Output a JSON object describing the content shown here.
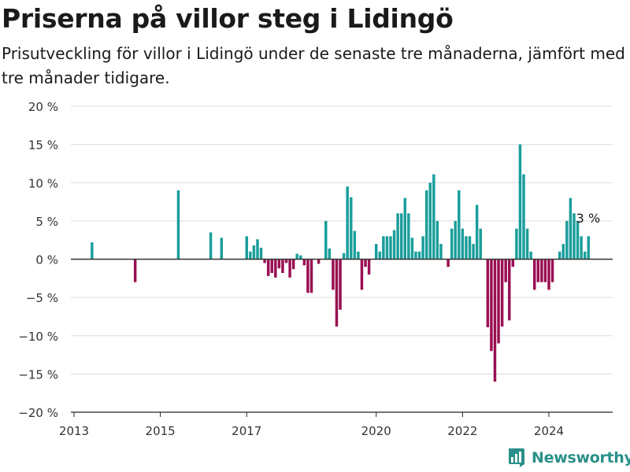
{
  "header": {
    "title": "Priserna på villor steg i Lidingö",
    "subtitle": "Prisutveckling för villor i Lidingö under de senaste tre månaderna, jämfört med tre månader tidigare."
  },
  "brand": {
    "name": "Newsworthy",
    "icon": "newsworthy-logo-icon"
  },
  "colors": {
    "positive": "#1a9e9b",
    "negative": "#9a0e52",
    "grid": "#dcdcdc",
    "zero_line": "#333333",
    "brand": "#2a8f89"
  },
  "chart_data": {
    "type": "bar",
    "title": "Priserna på villor steg i Lidingö",
    "xlabel": "",
    "ylabel": "",
    "ylim": [
      -20,
      20
    ],
    "y_ticks": [
      -20,
      -15,
      -10,
      -5,
      0,
      5,
      10,
      15,
      20
    ],
    "y_tick_labels": [
      "−20 %",
      "−15 %",
      "−10 %",
      "−5 %",
      "0 %",
      "5 %",
      "10 %",
      "15 %",
      "20 %"
    ],
    "x_tick_labels": [
      "2013",
      "2015",
      "2017",
      "2020",
      "2022",
      "2024"
    ],
    "x_tick_dates": [
      "2013-01",
      "2015-01",
      "2017-01",
      "2020-01",
      "2022-01",
      "2024-01"
    ],
    "grid": true,
    "annotation": {
      "text": "3 %",
      "date": "2024-11"
    },
    "series": [
      {
        "values": [
          [
            "2013-06",
            2.2
          ],
          [
            "2014-06",
            -3.0
          ],
          [
            "2015-06",
            9.0
          ],
          [
            "2016-03",
            3.5
          ],
          [
            "2016-06",
            2.8
          ],
          [
            "2017-01",
            3.0
          ],
          [
            "2017-02",
            1.0
          ],
          [
            "2017-03",
            1.8
          ],
          [
            "2017-04",
            2.6
          ],
          [
            "2017-05",
            1.5
          ],
          [
            "2017-06",
            -0.5
          ],
          [
            "2017-07",
            -2.2
          ],
          [
            "2017-08",
            -1.8
          ],
          [
            "2017-09",
            -2.4
          ],
          [
            "2017-10",
            -1.2
          ],
          [
            "2017-11",
            -1.8
          ],
          [
            "2017-12",
            -0.5
          ],
          [
            "2018-01",
            -2.4
          ],
          [
            "2018-02",
            -1.3
          ],
          [
            "2018-03",
            0.7
          ],
          [
            "2018-04",
            0.5
          ],
          [
            "2018-05",
            -0.8
          ],
          [
            "2018-06",
            -4.4
          ],
          [
            "2018-07",
            -4.4
          ],
          [
            "2018-09",
            -0.6
          ],
          [
            "2018-11",
            5.0
          ],
          [
            "2018-12",
            1.4
          ],
          [
            "2019-01",
            -4.0
          ],
          [
            "2019-02",
            -8.8
          ],
          [
            "2019-03",
            -6.6
          ],
          [
            "2019-04",
            0.8
          ],
          [
            "2019-05",
            9.5
          ],
          [
            "2019-06",
            8.1
          ],
          [
            "2019-07",
            3.7
          ],
          [
            "2019-08",
            1.0
          ],
          [
            "2019-09",
            -4.0
          ],
          [
            "2019-10",
            -1.0
          ],
          [
            "2019-11",
            -2.0
          ],
          [
            "2020-01",
            2.0
          ],
          [
            "2020-02",
            1.0
          ],
          [
            "2020-03",
            3.0
          ],
          [
            "2020-04",
            3.0
          ],
          [
            "2020-05",
            3.0
          ],
          [
            "2020-06",
            3.8
          ],
          [
            "2020-07",
            6.0
          ],
          [
            "2020-08",
            6.0
          ],
          [
            "2020-09",
            8.0
          ],
          [
            "2020-10",
            6.0
          ],
          [
            "2020-11",
            2.8
          ],
          [
            "2020-12",
            1.0
          ],
          [
            "2021-01",
            1.0
          ],
          [
            "2021-02",
            3.0
          ],
          [
            "2021-03",
            9.0
          ],
          [
            "2021-04",
            10.0
          ],
          [
            "2021-05",
            11.1
          ],
          [
            "2021-06",
            5.0
          ],
          [
            "2021-07",
            2.0
          ],
          [
            "2021-09",
            -1.0
          ],
          [
            "2021-10",
            4.0
          ],
          [
            "2021-11",
            5.0
          ],
          [
            "2021-12",
            9.0
          ],
          [
            "2022-01",
            4.0
          ],
          [
            "2022-02",
            3.0
          ],
          [
            "2022-03",
            3.0
          ],
          [
            "2022-04",
            2.0
          ],
          [
            "2022-05",
            7.1
          ],
          [
            "2022-06",
            4.0
          ],
          [
            "2022-08",
            -8.9
          ],
          [
            "2022-09",
            -12.0
          ],
          [
            "2022-10",
            -16.0
          ],
          [
            "2022-11",
            -11.0
          ],
          [
            "2022-12",
            -8.8
          ],
          [
            "2023-01",
            -3.0
          ],
          [
            "2023-02",
            -8.0
          ],
          [
            "2023-03",
            -1.0
          ],
          [
            "2023-04",
            4.0
          ],
          [
            "2023-05",
            15.0
          ],
          [
            "2023-06",
            11.1
          ],
          [
            "2023-07",
            4.0
          ],
          [
            "2023-08",
            1.0
          ],
          [
            "2023-09",
            -4.0
          ],
          [
            "2023-10",
            -3.0
          ],
          [
            "2023-11",
            -3.0
          ],
          [
            "2023-12",
            -3.0
          ],
          [
            "2024-01",
            -4.0
          ],
          [
            "2024-02",
            -3.0
          ],
          [
            "2024-04",
            1.0
          ],
          [
            "2024-05",
            2.0
          ],
          [
            "2024-06",
            5.0
          ],
          [
            "2024-07",
            8.0
          ],
          [
            "2024-08",
            6.0
          ],
          [
            "2024-09",
            5.0
          ],
          [
            "2024-10",
            3.0
          ],
          [
            "2024-11",
            1.0
          ],
          [
            "2024-12",
            3.0
          ]
        ]
      }
    ]
  }
}
